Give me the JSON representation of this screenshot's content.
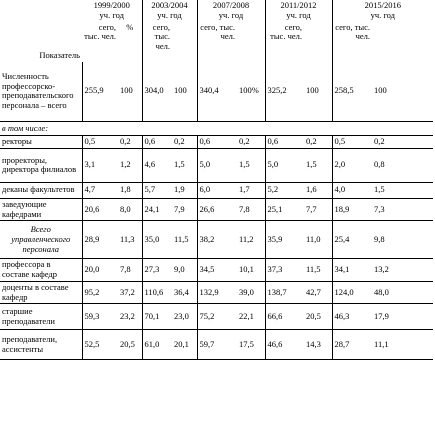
{
  "table": {
    "years": [
      "1999/2000",
      "2003/2004",
      "2007/2008",
      "2011/2012",
      "2015/2016"
    ],
    "year_unit": "уч. год",
    "indicator_header": "Показатель",
    "count_header": "сего, тыс. чел.",
    "percent_header": "%",
    "rows": [
      [
        "Численность профессорско-преподавательского персонала – всего",
        "255,9",
        "100",
        "304,0",
        "100",
        "340,4",
        "100%",
        "325,2",
        "100",
        "258,5",
        "100"
      ],
      [
        "в том числе:"
      ],
      [
        "ректоры",
        "0,5",
        "0,2",
        "0,6",
        "0,2",
        "0,6",
        "0,2",
        "0,6",
        "0,2",
        "0,5",
        "0,2"
      ],
      [
        "проректоры, директора филиалов",
        "3,1",
        "1,2",
        "4,6",
        "1,5",
        "5,0",
        "1,5",
        "5,0",
        "1,5",
        "2,0",
        "0,8"
      ],
      [
        "деканы факультетов",
        "4,7",
        "1,8",
        "5,7",
        "1,9",
        "6,0",
        "1,7",
        "5,2",
        "1,6",
        "4,0",
        "1,5"
      ],
      [
        "заведующие кафедрами",
        "20,6",
        "8,0",
        "24,1",
        "7,9",
        "26,6",
        "7,8",
        "25,1",
        "7,7",
        "18,9",
        "7,3"
      ],
      [
        "Всего управленческого персонала",
        "28,9",
        "11,3",
        "35,0",
        "11,5",
        "38,2",
        "11,2",
        "35,9",
        "11,0",
        "25,4",
        "9,8"
      ],
      [
        "профессора в составе кафедр",
        "20,0",
        "7,8",
        "27,3",
        "9,0",
        "34,5",
        "10,1",
        "37,3",
        "11,5",
        "34,1",
        "13,2"
      ],
      [
        "доценты в составе кафедр",
        "95,2",
        "37,2",
        "110,6",
        "36,4",
        "132,9",
        "39,0",
        "138,7",
        "42,7",
        "124,0",
        "48,0"
      ],
      [
        "старшие преподаватели",
        "59,3",
        "23,2",
        "70,1",
        "23,0",
        "75,2",
        "22,1",
        "66,6",
        "20,5",
        "46,3",
        "17,9"
      ],
      [
        "преподаватели, ассистенты",
        "52,5",
        "20,5",
        "61,0",
        "20,1",
        "59,7",
        "17,5",
        "46,6",
        "14,3",
        "28,7",
        "11,1"
      ]
    ]
  }
}
